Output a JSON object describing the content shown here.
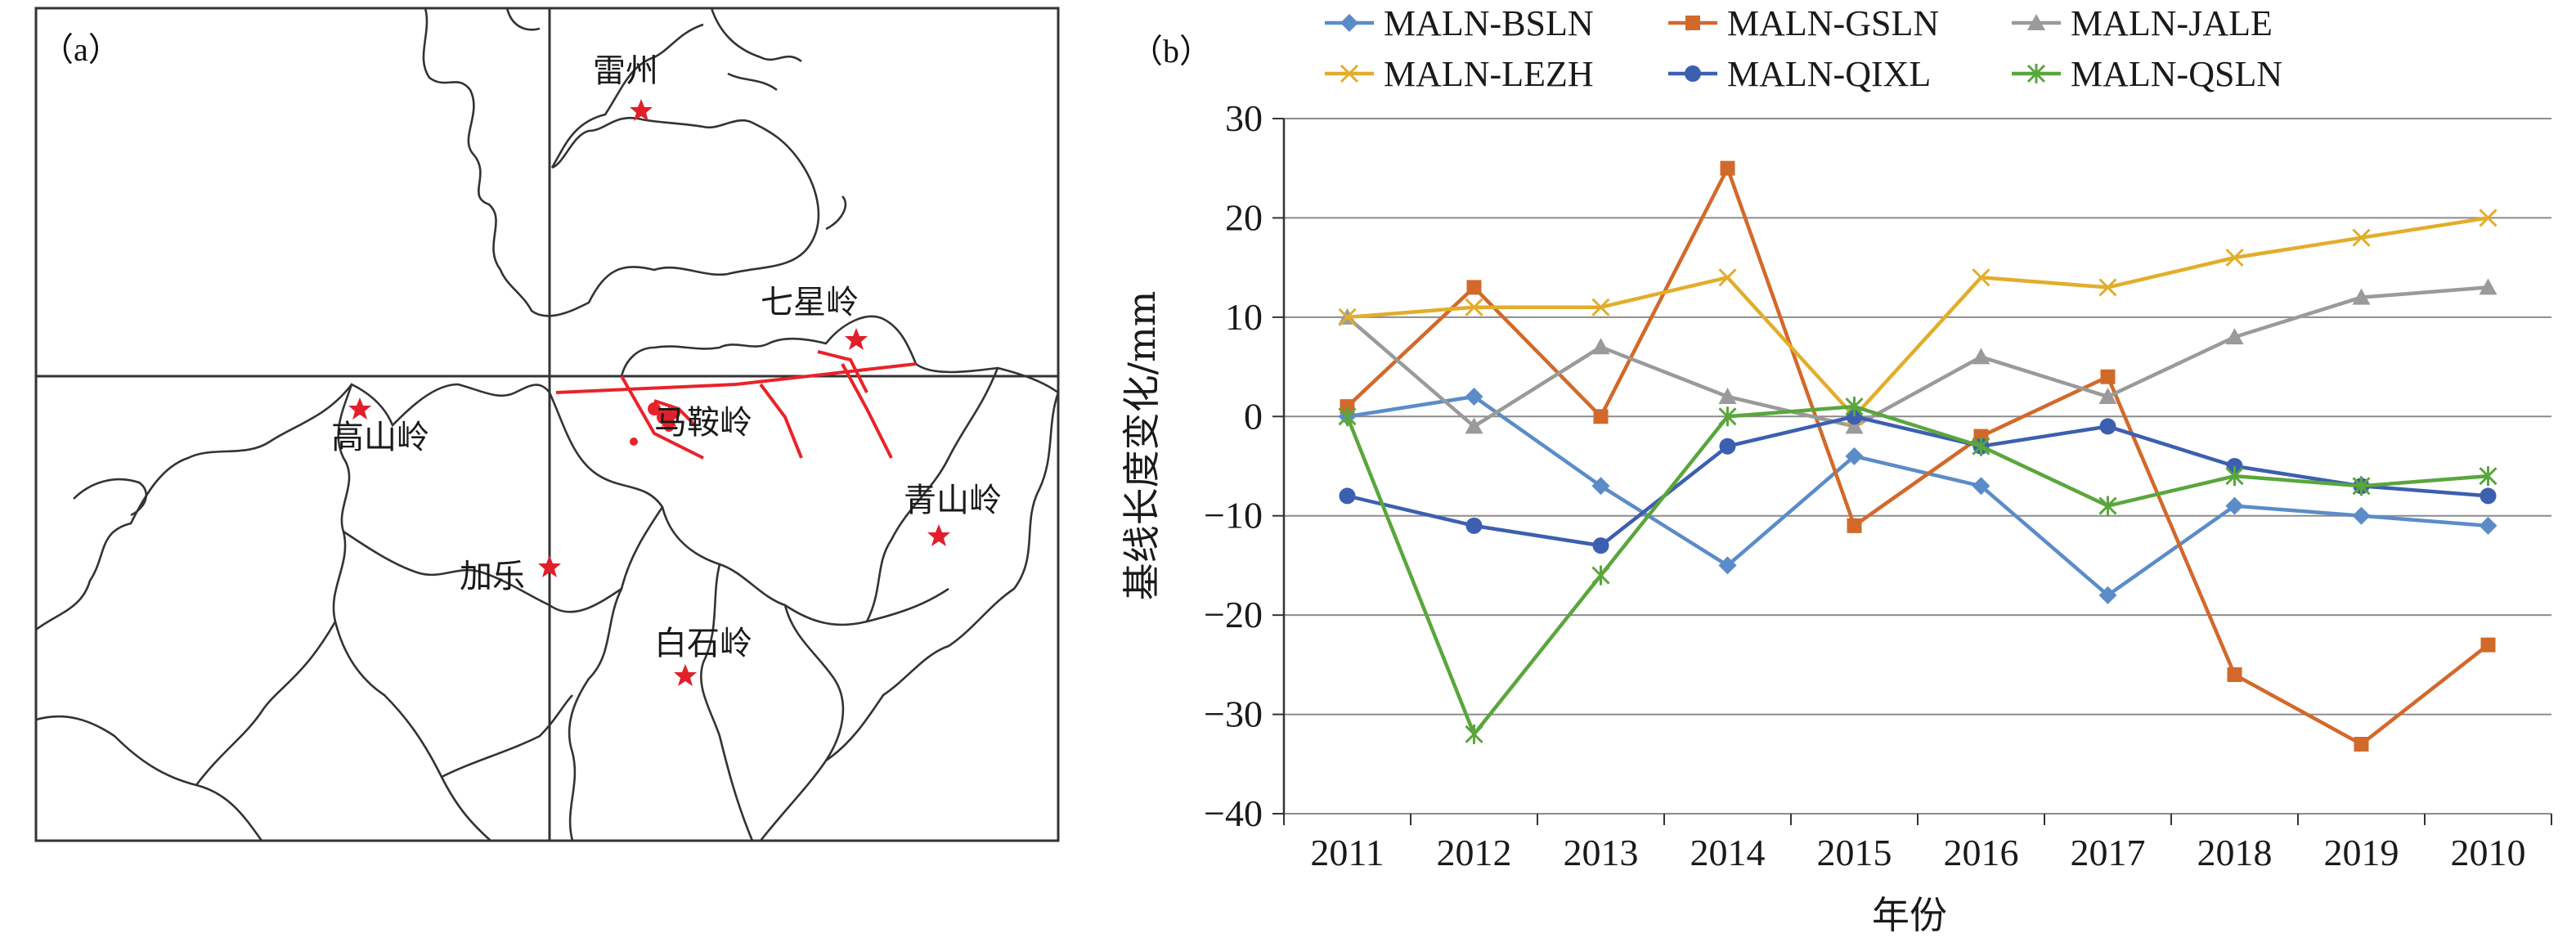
{
  "map": {
    "panel_label": "（a）",
    "places": [
      {
        "name": "雷州",
        "star": true
      },
      {
        "name": "七星岭",
        "star": true
      },
      {
        "name": "高山岭",
        "star": true
      },
      {
        "name": "马鞍岭",
        "star": true
      },
      {
        "name": "青山岭",
        "star": true
      },
      {
        "name": "加乐",
        "star": true
      },
      {
        "name": "白石岭",
        "star": true
      }
    ],
    "colors": {
      "star": "#e0202a",
      "fault": "#e8232a",
      "outline": "#333333",
      "grid": "#333333"
    }
  },
  "chart_data": {
    "type": "line",
    "panel_label": "（b）",
    "categories": [
      "2011",
      "2012",
      "2013",
      "2014",
      "2015",
      "2016",
      "2017",
      "2018",
      "2019",
      "2010"
    ],
    "xlabel": "年份",
    "ylabel": "基线长度变化/mm",
    "ylim": [
      -40,
      30
    ],
    "yticks": [
      "30",
      "20",
      "10",
      "0",
      "−10",
      "−20",
      "−30",
      "−40"
    ],
    "grid": true,
    "legend_position": "top",
    "series": [
      {
        "name": "MALN-BSLN",
        "color": "#5b8cc8",
        "marker": "diamond",
        "values": [
          0,
          2,
          -7,
          -15,
          -4,
          -7,
          -18,
          -9,
          -10,
          -11
        ]
      },
      {
        "name": "MALN-GSLN",
        "color": "#d2692a",
        "marker": "square",
        "values": [
          1,
          13,
          0,
          25,
          -11,
          -2,
          4,
          -26,
          -33,
          -23
        ]
      },
      {
        "name": "MALN-JALE",
        "color": "#9a9a9a",
        "marker": "triangle",
        "values": [
          10,
          -1,
          7,
          2,
          -1,
          6,
          2,
          8,
          12,
          13
        ]
      },
      {
        "name": "MALN-LEZH",
        "color": "#e2ad2b",
        "marker": "x",
        "values": [
          10,
          11,
          11,
          14,
          0,
          14,
          13,
          16,
          18,
          20
        ]
      },
      {
        "name": "MALN-QIXL",
        "color": "#3c5fb0",
        "marker": "circle",
        "values": [
          -8,
          -11,
          -13,
          -3,
          0,
          -3,
          -1,
          -5,
          -7,
          -8
        ]
      },
      {
        "name": "MALN-QSLN",
        "color": "#5aa63d",
        "marker": "star",
        "values": [
          0,
          -32,
          -16,
          0,
          1,
          -3,
          -9,
          -6,
          -7,
          -6
        ]
      }
    ]
  }
}
